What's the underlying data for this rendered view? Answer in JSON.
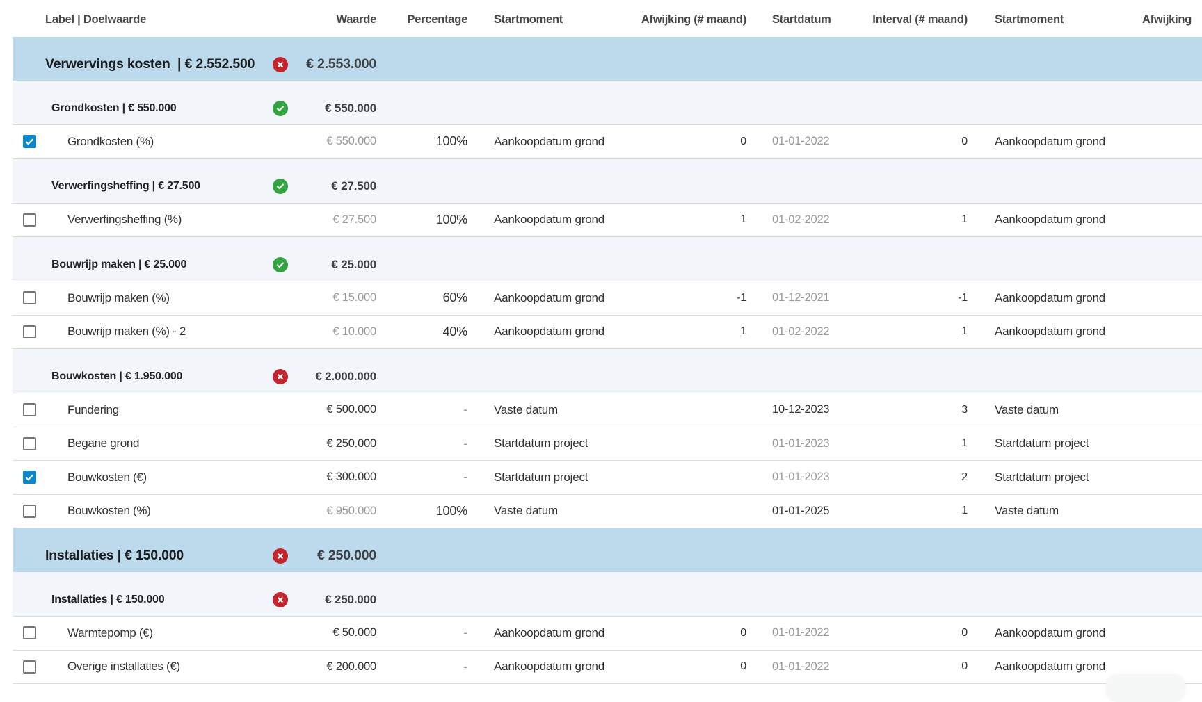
{
  "table": {
    "columns": [
      {
        "key": "label",
        "label": "Label | Doelwaarde",
        "align": "left"
      },
      {
        "key": "waarde",
        "label": "Waarde",
        "align": "right"
      },
      {
        "key": "percentage",
        "label": "Percentage",
        "align": "right"
      },
      {
        "key": "startmoment",
        "label": "Startmoment",
        "align": "left"
      },
      {
        "key": "afwijking",
        "label": "Afwijking (# maand)",
        "align": "right"
      },
      {
        "key": "startdatum",
        "label": "Startdatum",
        "align": "left"
      },
      {
        "key": "interval",
        "label": "Interval (# maand)",
        "align": "right"
      },
      {
        "key": "startmoment2",
        "label": "Startmoment",
        "align": "left"
      },
      {
        "key": "afwijking2",
        "label": "Afwijking",
        "align": "left"
      }
    ],
    "rows": [
      {
        "type": "group",
        "label": "Verwervings kosten  | € 2.552.500",
        "status": "error",
        "waarde": "€ 2.553.000",
        "waarde_muted": false
      },
      {
        "type": "subgroup",
        "label": "Grondkosten | € 550.000",
        "status": "ok",
        "waarde": "€ 550.000",
        "waarde_muted": false
      },
      {
        "type": "detail",
        "checked": true,
        "label": "Grondkosten (%)",
        "waarde": "€ 550.000",
        "waarde_muted": true,
        "percentage": "100%",
        "startmoment": "Aankoopdatum grond",
        "afwijking": "0",
        "startdatum": "01-01-2022",
        "startdatum_muted": true,
        "interval": "0",
        "startmoment2": "Aankoopdatum grond"
      },
      {
        "type": "subgroup",
        "label": "Verwerfingsheffing | € 27.500",
        "status": "ok",
        "waarde": "€ 27.500",
        "waarde_muted": false
      },
      {
        "type": "detail",
        "checked": false,
        "label": "Verwerfingsheffing (%)",
        "waarde": "€ 27.500",
        "waarde_muted": true,
        "percentage": "100%",
        "startmoment": "Aankoopdatum grond",
        "afwijking": "1",
        "startdatum": "01-02-2022",
        "startdatum_muted": true,
        "interval": "1",
        "startmoment2": "Aankoopdatum grond"
      },
      {
        "type": "subgroup",
        "label": "Bouwrijp maken | € 25.000",
        "status": "ok",
        "waarde": "€ 25.000",
        "waarde_muted": false
      },
      {
        "type": "detail",
        "checked": false,
        "label": "Bouwrijp maken (%)",
        "waarde": "€ 15.000",
        "waarde_muted": true,
        "percentage": "60%",
        "startmoment": "Aankoopdatum grond",
        "afwijking": "-1",
        "startdatum": "01-12-2021",
        "startdatum_muted": true,
        "interval": "-1",
        "startmoment2": "Aankoopdatum grond"
      },
      {
        "type": "detail",
        "checked": false,
        "label": "Bouwrijp maken (%) - 2",
        "waarde": "€ 10.000",
        "waarde_muted": true,
        "percentage": "40%",
        "startmoment": "Aankoopdatum grond",
        "afwijking": "1",
        "startdatum": "01-02-2022",
        "startdatum_muted": true,
        "interval": "1",
        "startmoment2": "Aankoopdatum grond"
      },
      {
        "type": "subgroup",
        "label": "Bouwkosten | € 1.950.000",
        "status": "error",
        "waarde": "€ 2.000.000",
        "waarde_muted": false
      },
      {
        "type": "detail",
        "checked": false,
        "label": "Fundering",
        "waarde": "€ 500.000",
        "waarde_muted": false,
        "percentage": "-",
        "startmoment": "Vaste datum",
        "afwijking": "",
        "startdatum": "10-12-2023",
        "startdatum_muted": false,
        "interval": "3",
        "startmoment2": "Vaste datum"
      },
      {
        "type": "detail",
        "checked": false,
        "label": "Begane grond",
        "waarde": "€ 250.000",
        "waarde_muted": false,
        "percentage": "-",
        "startmoment": "Startdatum project",
        "afwijking": "",
        "startdatum": "01-01-2023",
        "startdatum_muted": true,
        "interval": "1",
        "startmoment2": "Startdatum project"
      },
      {
        "type": "detail",
        "checked": true,
        "label": "Bouwkosten (€)",
        "waarde": "€ 300.000",
        "waarde_muted": false,
        "percentage": "-",
        "startmoment": "Startdatum project",
        "afwijking": "",
        "startdatum": "01-01-2023",
        "startdatum_muted": true,
        "interval": "2",
        "startmoment2": "Startdatum project"
      },
      {
        "type": "detail",
        "checked": false,
        "label": "Bouwkosten (%)",
        "waarde": "€ 950.000",
        "waarde_muted": true,
        "percentage": "100%",
        "startmoment": "Vaste datum",
        "afwijking": "",
        "startdatum": "01-01-2025",
        "startdatum_muted": false,
        "interval": "1",
        "startmoment2": "Vaste datum"
      },
      {
        "type": "group",
        "label": "Installaties | € 150.000",
        "status": "error",
        "waarde": "€ 250.000",
        "waarde_muted": false
      },
      {
        "type": "subgroup",
        "label": "Installaties | € 150.000",
        "status": "error",
        "waarde": "€ 250.000",
        "waarde_muted": false
      },
      {
        "type": "detail",
        "checked": false,
        "label": "Warmtepomp (€)",
        "waarde": "€ 50.000",
        "waarde_muted": false,
        "percentage": "-",
        "startmoment": "Aankoopdatum grond",
        "afwijking": "0",
        "startdatum": "01-01-2022",
        "startdatum_muted": true,
        "interval": "0",
        "startmoment2": "Aankoopdatum grond"
      },
      {
        "type": "detail",
        "checked": false,
        "label": "Overige installaties (€)",
        "waarde": "€ 200.000",
        "waarde_muted": false,
        "percentage": "-",
        "startmoment": "Aankoopdatum grond",
        "afwijking": "0",
        "startdatum": "01-01-2022",
        "startdatum_muted": true,
        "interval": "0",
        "startmoment2": "Aankoopdatum grond"
      }
    ]
  },
  "status_icons": {
    "ok": "check-icon",
    "error": "cross-icon"
  },
  "colors": {
    "group_row_bg": "#bcdaec",
    "subgroup_row_bg": "#f2f6fa",
    "row_border": "#dbdcde",
    "checkbox_checked": "#0c87cb",
    "badge_error": "#c5242c",
    "badge_ok": "#34a443",
    "text_dark": "#2f3234",
    "text_muted": "#97999c",
    "header_text": "#45484b"
  }
}
